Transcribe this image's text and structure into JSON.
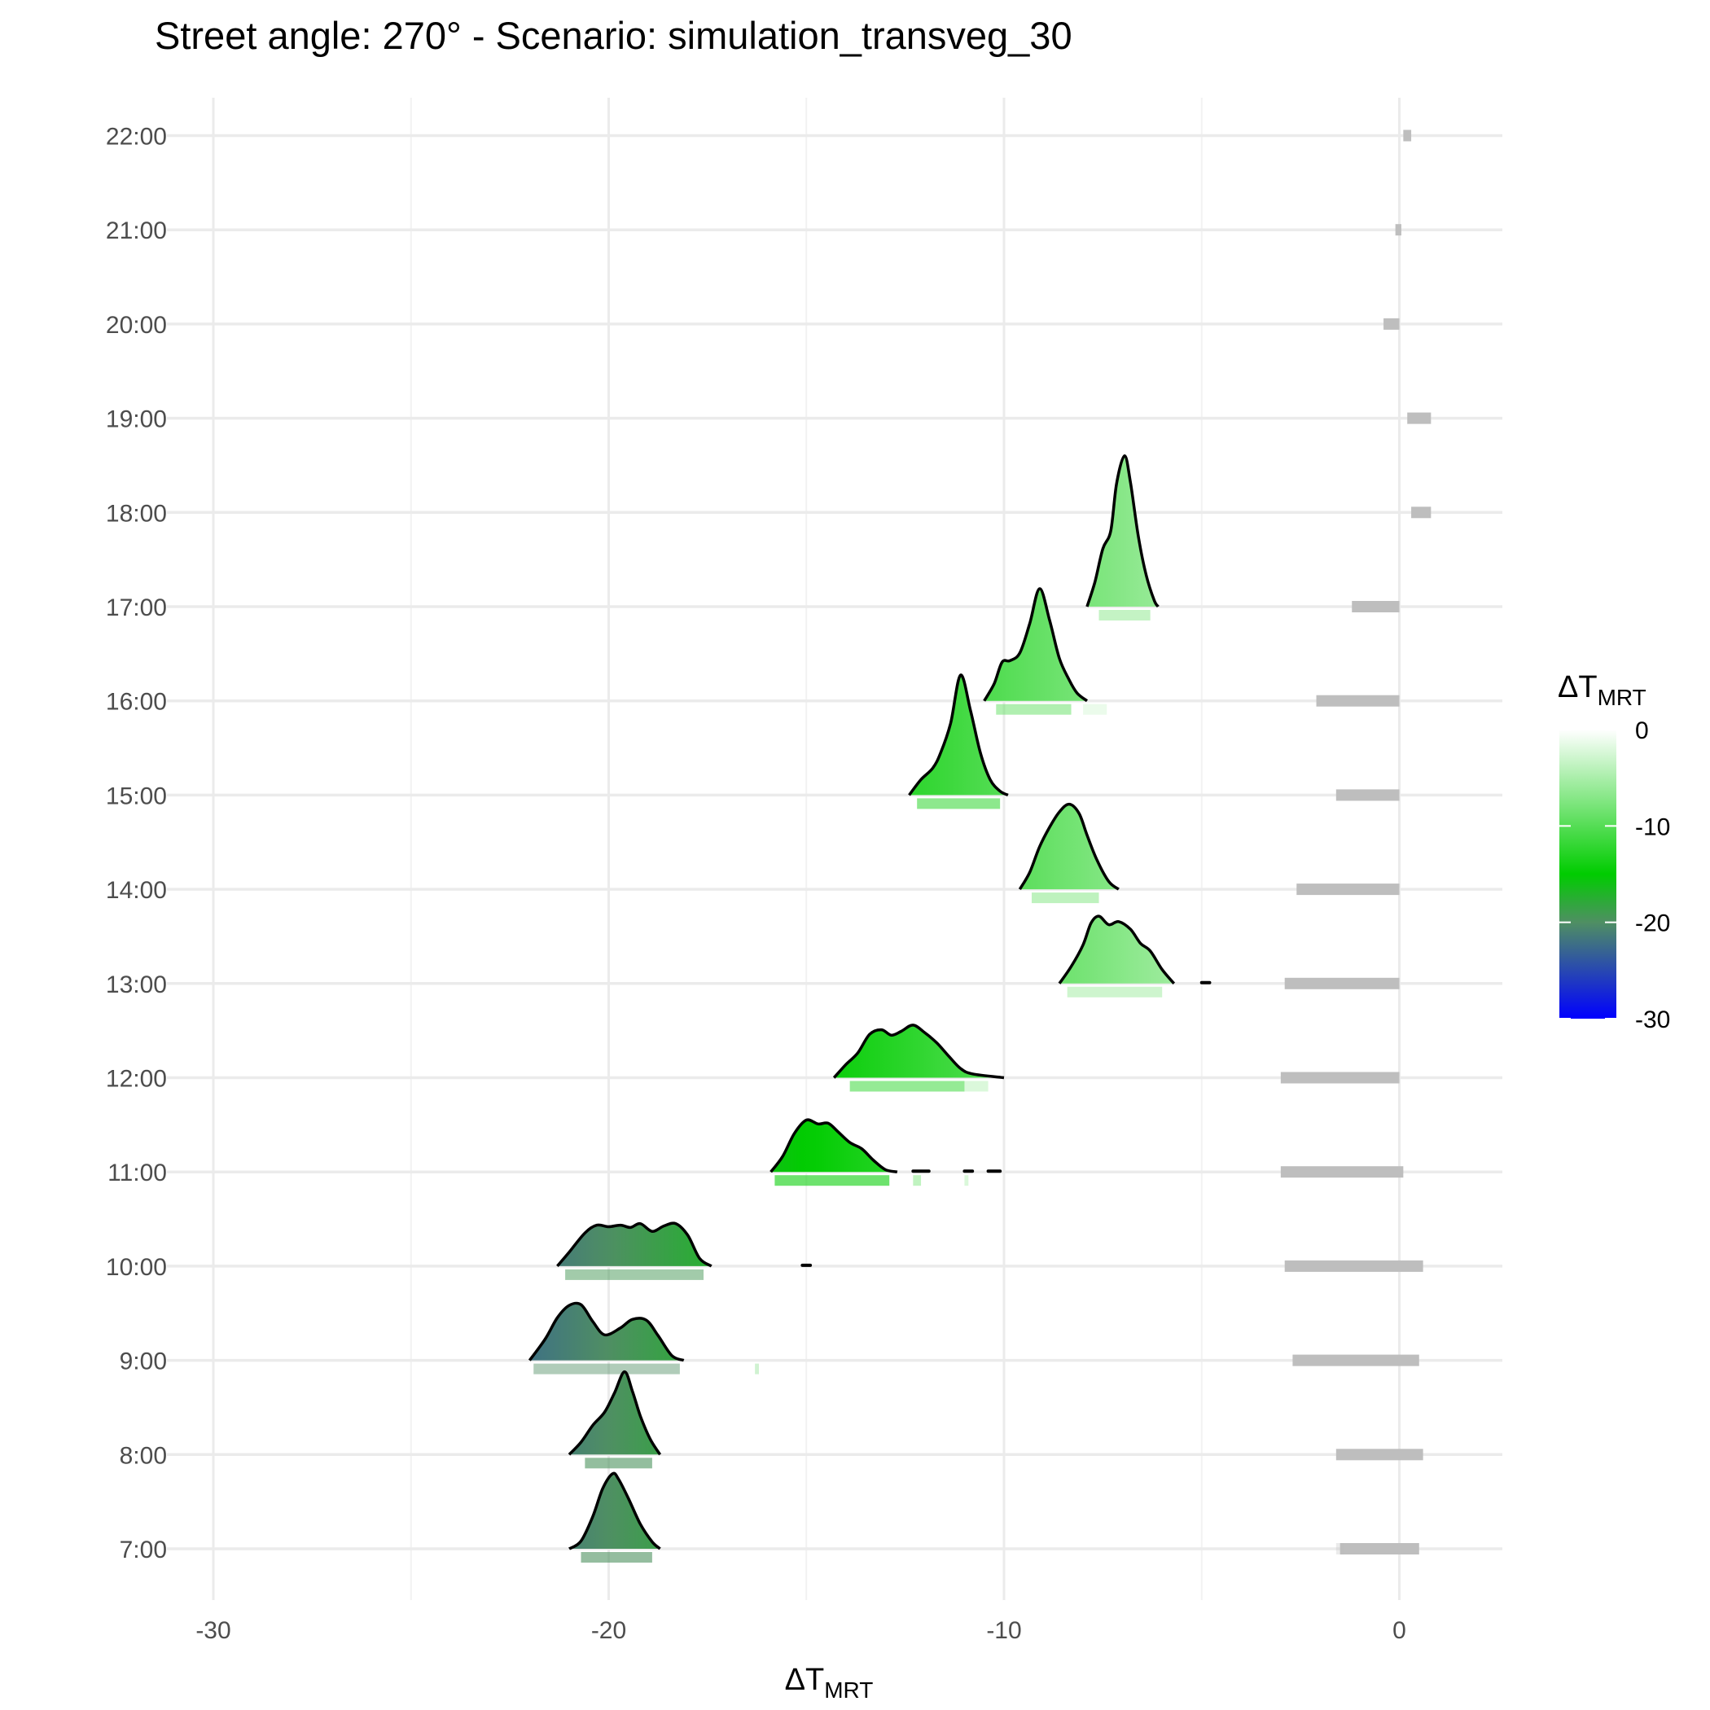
{
  "chart_data": {
    "type": "ridgeline",
    "title": "Street angle: 270° - Scenario: simulation_transveg_30",
    "xlabel": {
      "main": "ΔT",
      "sub": "MRT"
    },
    "ylabel": "",
    "xlim": [
      -32.5,
      2.5
    ],
    "x_ticks": [
      -30,
      -20,
      -10,
      0
    ],
    "x_tick_labels": [
      "-30",
      "-20",
      "-10",
      "0"
    ],
    "x_minor_gridlines": [
      -25,
      -15,
      -5
    ],
    "y_categories": [
      "7:00",
      "8:00",
      "9:00",
      "10:00",
      "11:00",
      "12:00",
      "13:00",
      "14:00",
      "15:00",
      "16:00",
      "17:00",
      "18:00",
      "19:00",
      "20:00",
      "21:00",
      "22:00"
    ],
    "grid": true,
    "legend": {
      "title": {
        "main": "ΔT",
        "sub": "MRT"
      },
      "position": "right",
      "ticks": [
        0,
        -10,
        -20,
        -30
      ],
      "tick_labels": [
        "0",
        "-10",
        "-20",
        "-30"
      ],
      "colors": [
        {
          "value": 0,
          "color": "#ffffff"
        },
        {
          "value": -15,
          "color": "#00cc00"
        },
        {
          "value": -20,
          "color": "#4f8f63"
        },
        {
          "value": -30,
          "color": "#0000ff"
        }
      ]
    },
    "rug_color": "#bebebe",
    "series": [
      {
        "name": "7:00",
        "min": -21.0,
        "max": -18.7,
        "curve": [
          [
            -21.0,
            0.0
          ],
          [
            -20.7,
            0.1
          ],
          [
            -20.4,
            0.42
          ],
          [
            -20.15,
            0.78
          ],
          [
            -19.9,
            0.97
          ],
          [
            -19.75,
            0.9
          ],
          [
            -19.5,
            0.65
          ],
          [
            -19.2,
            0.32
          ],
          [
            -18.9,
            0.09
          ],
          [
            -18.7,
            0.0
          ]
        ],
        "rug": [
          [
            -20.7,
            -18.9,
            0.6
          ]
        ],
        "ref_rug": [
          [
            -1.5,
            0.5,
            1.0
          ],
          [
            -1.6,
            -1.4,
            0.3
          ]
        ]
      },
      {
        "name": "8:00",
        "min": -21.0,
        "max": -18.7,
        "curve": [
          [
            -21.0,
            0.0
          ],
          [
            -20.7,
            0.16
          ],
          [
            -20.4,
            0.38
          ],
          [
            -20.1,
            0.55
          ],
          [
            -19.85,
            0.8
          ],
          [
            -19.6,
            1.07
          ],
          [
            -19.4,
            0.82
          ],
          [
            -19.2,
            0.5
          ],
          [
            -18.95,
            0.2
          ],
          [
            -18.7,
            0.0
          ]
        ],
        "rug": [
          [
            -20.6,
            -18.9,
            0.6
          ]
        ],
        "ref_rug": [
          [
            -1.6,
            0.6,
            1.0
          ]
        ]
      },
      {
        "name": "9:00",
        "min": -22.0,
        "max": -18.1,
        "curve": [
          [
            -22.0,
            0.0
          ],
          [
            -21.6,
            0.28
          ],
          [
            -21.3,
            0.55
          ],
          [
            -21.0,
            0.71
          ],
          [
            -20.7,
            0.72
          ],
          [
            -20.4,
            0.5
          ],
          [
            -20.1,
            0.33
          ],
          [
            -19.7,
            0.42
          ],
          [
            -19.4,
            0.53
          ],
          [
            -19.05,
            0.52
          ],
          [
            -18.75,
            0.32
          ],
          [
            -18.4,
            0.06
          ],
          [
            -18.1,
            0.0
          ]
        ],
        "rug": [
          [
            -21.9,
            -18.2,
            0.45
          ],
          [
            -16.3,
            -16.2,
            0.2
          ]
        ],
        "ref_rug": [
          [
            -2.7,
            0.5,
            1.0
          ]
        ]
      },
      {
        "name": "10:00",
        "min": -21.3,
        "max": -17.4,
        "curve": [
          [
            -21.3,
            0.0
          ],
          [
            -21.0,
            0.18
          ],
          [
            -20.6,
            0.43
          ],
          [
            -20.3,
            0.53
          ],
          [
            -20.0,
            0.51
          ],
          [
            -19.7,
            0.53
          ],
          [
            -19.45,
            0.5
          ],
          [
            -19.2,
            0.55
          ],
          [
            -18.9,
            0.45
          ],
          [
            -18.6,
            0.52
          ],
          [
            -18.3,
            0.55
          ],
          [
            -18.0,
            0.4
          ],
          [
            -17.7,
            0.1
          ],
          [
            -17.4,
            0.0
          ]
        ],
        "rug": [
          [
            -21.1,
            -17.6,
            0.5
          ]
        ],
        "extra": [
          [
            -15.1,
            -14.9
          ]
        ],
        "ref_rug": [
          [
            -2.9,
            0.6,
            1.0
          ]
        ]
      },
      {
        "name": "11:00",
        "min": -15.9,
        "max": -12.7,
        "curve": [
          [
            -15.9,
            0.0
          ],
          [
            -15.6,
            0.2
          ],
          [
            -15.3,
            0.5
          ],
          [
            -15.0,
            0.67
          ],
          [
            -14.7,
            0.62
          ],
          [
            -14.45,
            0.63
          ],
          [
            -14.2,
            0.52
          ],
          [
            -13.9,
            0.38
          ],
          [
            -13.6,
            0.3
          ],
          [
            -13.3,
            0.15
          ],
          [
            -13.0,
            0.03
          ],
          [
            -12.7,
            0.0
          ]
        ],
        "rug": [
          [
            -15.8,
            -12.9,
            0.6
          ],
          [
            -12.3,
            -12.1,
            0.3
          ],
          [
            -11.0,
            -10.9,
            0.2
          ]
        ],
        "extra": [
          [
            -12.3,
            -11.9
          ],
          [
            -11.0,
            -10.8
          ],
          [
            -10.4,
            -10.1
          ]
        ],
        "ref_rug": [
          [
            -3.0,
            0.1,
            1.0
          ]
        ]
      },
      {
        "name": "12:00",
        "min": -14.3,
        "max": -10.0,
        "curve": [
          [
            -14.3,
            0.0
          ],
          [
            -14.0,
            0.17
          ],
          [
            -13.7,
            0.32
          ],
          [
            -13.4,
            0.56
          ],
          [
            -13.1,
            0.62
          ],
          [
            -12.85,
            0.55
          ],
          [
            -12.6,
            0.6
          ],
          [
            -12.3,
            0.68
          ],
          [
            -12.0,
            0.58
          ],
          [
            -11.7,
            0.45
          ],
          [
            -11.4,
            0.28
          ],
          [
            -11.1,
            0.12
          ],
          [
            -10.8,
            0.05
          ],
          [
            -10.0,
            0.0
          ]
        ],
        "rug": [
          [
            -13.9,
            -11.0,
            0.5
          ],
          [
            -11.0,
            -10.4,
            0.2
          ]
        ],
        "ref_rug": [
          [
            -3.0,
            0.0,
            1.0
          ]
        ]
      },
      {
        "name": "13:00",
        "min": -8.6,
        "max": -5.7,
        "curve": [
          [
            -8.6,
            0.0
          ],
          [
            -8.3,
            0.22
          ],
          [
            -8.0,
            0.5
          ],
          [
            -7.8,
            0.78
          ],
          [
            -7.6,
            0.87
          ],
          [
            -7.35,
            0.76
          ],
          [
            -7.1,
            0.8
          ],
          [
            -6.8,
            0.7
          ],
          [
            -6.55,
            0.52
          ],
          [
            -6.3,
            0.42
          ],
          [
            -6.0,
            0.18
          ],
          [
            -5.7,
            0.0
          ]
        ],
        "rug": [
          [
            -8.4,
            -6.0,
            0.4
          ]
        ],
        "extra": [
          [
            -5.0,
            -4.8
          ]
        ],
        "ref_rug": [
          [
            -2.9,
            0.0,
            1.0
          ]
        ]
      },
      {
        "name": "14:00",
        "min": -9.6,
        "max": -7.1,
        "curve": [
          [
            -9.6,
            0.0
          ],
          [
            -9.35,
            0.22
          ],
          [
            -9.1,
            0.55
          ],
          [
            -8.85,
            0.8
          ],
          [
            -8.6,
            1.0
          ],
          [
            -8.35,
            1.1
          ],
          [
            -8.1,
            0.98
          ],
          [
            -7.9,
            0.7
          ],
          [
            -7.65,
            0.38
          ],
          [
            -7.35,
            0.1
          ],
          [
            -7.1,
            0.0
          ]
        ],
        "rug": [
          [
            -9.3,
            -7.6,
            0.45
          ]
        ],
        "ref_rug": [
          [
            -2.6,
            0.0,
            1.0
          ]
        ]
      },
      {
        "name": "15:00",
        "min": -12.4,
        "max": -9.9,
        "curve": [
          [
            -12.4,
            0.0
          ],
          [
            -12.1,
            0.2
          ],
          [
            -11.8,
            0.35
          ],
          [
            -11.6,
            0.55
          ],
          [
            -11.35,
            0.93
          ],
          [
            -11.1,
            1.55
          ],
          [
            -10.85,
            1.1
          ],
          [
            -10.6,
            0.55
          ],
          [
            -10.35,
            0.2
          ],
          [
            -10.1,
            0.05
          ],
          [
            -9.9,
            0.0
          ]
        ],
        "rug": [
          [
            -12.2,
            -10.1,
            0.6
          ]
        ],
        "ref_rug": [
          [
            -1.6,
            0.0,
            1.0
          ]
        ]
      },
      {
        "name": "16:00",
        "min": -10.5,
        "max": -7.9,
        "curve": [
          [
            -10.5,
            0.0
          ],
          [
            -10.25,
            0.22
          ],
          [
            -10.05,
            0.5
          ],
          [
            -9.85,
            0.52
          ],
          [
            -9.6,
            0.62
          ],
          [
            -9.35,
            1.0
          ],
          [
            -9.1,
            1.45
          ],
          [
            -8.85,
            1.05
          ],
          [
            -8.6,
            0.55
          ],
          [
            -8.35,
            0.27
          ],
          [
            -8.15,
            0.1
          ],
          [
            -7.9,
            0.0
          ]
        ],
        "rug": [
          [
            -10.2,
            -8.3,
            0.5
          ],
          [
            -8.0,
            -7.4,
            0.15
          ]
        ],
        "ref_rug": [
          [
            -2.1,
            0.0,
            1.0
          ]
        ]
      },
      {
        "name": "17:00",
        "min": -7.9,
        "max": -6.1,
        "curve": [
          [
            -7.9,
            0.0
          ],
          [
            -7.7,
            0.32
          ],
          [
            -7.5,
            0.75
          ],
          [
            -7.3,
            0.98
          ],
          [
            -7.15,
            1.6
          ],
          [
            -6.95,
            1.95
          ],
          [
            -6.8,
            1.6
          ],
          [
            -6.6,
            0.9
          ],
          [
            -6.4,
            0.4
          ],
          [
            -6.2,
            0.08
          ],
          [
            -6.1,
            0.0
          ]
        ],
        "rug": [
          [
            -7.6,
            -6.3,
            0.5
          ]
        ],
        "ref_rug": [
          [
            -1.2,
            0.0,
            1.0
          ]
        ]
      },
      {
        "name": "18:00",
        "min": null,
        "max": null,
        "curve": [],
        "rug": [],
        "ref_rug": [
          [
            0.3,
            0.8,
            1.0
          ]
        ]
      },
      {
        "name": "19:00",
        "min": null,
        "max": null,
        "curve": [],
        "rug": [],
        "ref_rug": [
          [
            0.2,
            0.8,
            1.0
          ]
        ]
      },
      {
        "name": "20:00",
        "min": null,
        "max": null,
        "curve": [],
        "rug": [],
        "ref_rug": [
          [
            -0.4,
            0.0,
            1.0
          ]
        ]
      },
      {
        "name": "21:00",
        "min": null,
        "max": null,
        "curve": [],
        "rug": [],
        "ref_rug": [
          [
            -0.1,
            0.05,
            1.0
          ]
        ]
      },
      {
        "name": "22:00",
        "min": null,
        "max": null,
        "curve": [],
        "rug": [],
        "ref_rug": [
          [
            0.1,
            0.3,
            1.0
          ]
        ]
      }
    ]
  }
}
